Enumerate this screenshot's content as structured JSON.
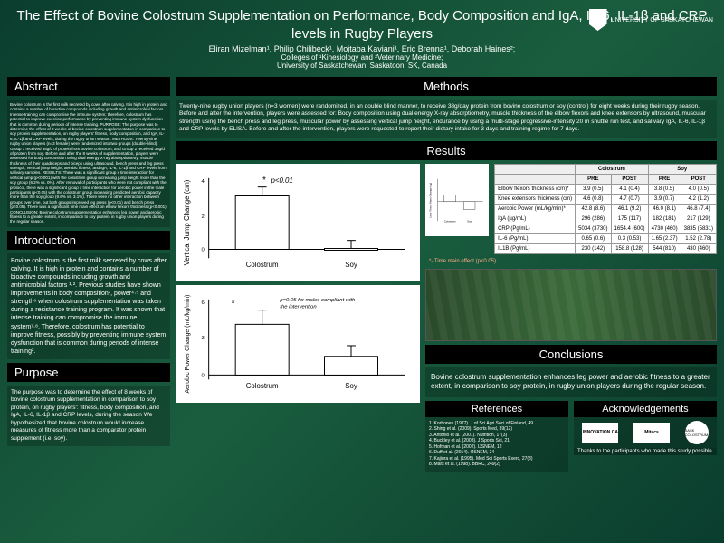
{
  "header": {
    "title": "The Effect of Bovine Colostrum Supplementation on Performance, Body Composition and IgA, IL-6, IL-1β and CRP levels in Rugby Players",
    "authors": "Eliran Mizelman¹, Philip Chilibeck¹, Mojtaba Kaviani¹, Eric Brenna¹, Deborah Haines²;",
    "affiliation": "Colleges of ¹Kinesiology and ²Veterinary Medicine;",
    "university": "University of Saskatchewan, Saskatoon, SK, Canada",
    "logo_text": "UNIVERSITY OF SASKATCHEWAN"
  },
  "sections": {
    "abstract": "Abstract",
    "introduction": "Introduction",
    "purpose": "Purpose",
    "methods": "Methods",
    "results": "Results",
    "conclusions": "Conclusions",
    "references": "References",
    "acknowledgements": "Acknowledgements"
  },
  "abstract_text": "Bovine colostrum is the first milk secreted by cows after calving. It is high in protein and contains a number of bioactive compounds including growth and antimicrobial factors. Intense training can compromise the immune system; therefore, colostrum has potential to improve exercise performance by preventing immune system dysfunction that is common during periods of intense training. PURPOSE: The purpose was to determine the effect of 8 weeks of bovine colostrum supplementation in comparison to soy protein supplementation, on rugby players' fitness, body composition, and IgA, IL-6, IL-1β and CRP levels, during the rugby union season. METHODS: Twenty-nine rugby union players (n=3 female) were randomized into two groups (double-blind). Group 1 received 38g/d of protein from bovine colostrum, and Group 2 received 38g/d of protein from soy. Before and after the 8 weeks of supplementation, players were assessed for body composition using dual energy X-ray absorptiometry, muscle thickness of their quadriceps and biceps using ultrasound, bench press and leg press strength, vertical jump height, aerobic fitness, and IgA, IL-6, IL-1β and CRP levels from salivary samples. RESULTS: There was a significant group x time interaction for vertical jump (p<0.001) with the colostrum group increasing jump height more than the soy group (6.2% vs. 0%). After removal of participants who were not compliant with the protocol, there was a significant group x time interaction for aerobic power in the male participants (p<0.05) with the colostrum group increasing predicted aerobic capacity more than the soy group (9.6% vs. 3.1%). There were no other interaction between groups over time, but both groups improved leg press (p<0.01) and bench press (p<0.05). There was a significant time main effect on elbow flexors thickness (p<0.001). CONCLUSION: Bovine colostrum supplementation enhances leg power and aerobic fitness to a greater extent, in comparison to soy protein, in rugby union players during the regular season.",
  "intro_text": "Bovine colostrum is the first milk secreted by cows after calving. It is high in protein and contains a number of bioactive compounds including growth and antimicrobial factors ¹·². Previous studies have shown improvements in body composition³, power⁴·⁵ and strength⁶ when colostrum supplementation was taken during a resistance training program. It was shown that intense training can compromise the immune system⁷·⁸. Therefore, colostrum has potential to improve fitness, possibly by preventing immune system dysfunction that is common during periods of intense training².",
  "purpose_text": "The purpose was to determine the effect of 8 weeks of bovine colostrum supplementation in comparison to soy protein, on rugby players': fitness, body composition, and IgA, IL-6, IL-1β and CRP levels, during the season We hypothesized that bovine colostrum would increase measures of fitness more than a comparator protein supplement (i.e. soy).",
  "methods_text": "Twenty-nine rugby union players (n=3 women) were randomized, in an double blind manner, to receive 38g/day protein from bovine colostrum or soy (control) for eight weeks during their rugby season. Before and after the intervention, players were assessed for: Body composition using dual energy X-ray absorptiometry, muscle thickness of the elbow flexors and knee extensors by ultrasound, muscular strength using the bench press and leg press, muscular power by assessing vertical jump height, endurance by using a multi-stage progressive-intensity 20 m shuttle run test, and salivary IgA, IL-6, IL-1β and CRP levels by ELISA. Before and after the intervention, players were requested to report their dietary intake for 3 days and training regime for 7 days.",
  "chart1": {
    "type": "bar",
    "ylabel": "Vertical Jump Change (cm)",
    "categories": [
      "Colostrum",
      "Soy"
    ],
    "values": [
      3.0,
      0.0
    ],
    "errors": [
      0.5,
      0.5
    ],
    "ylim": [
      -1,
      4
    ],
    "annotation": "p<0.01",
    "star": "*",
    "bar_color": "#ffffff",
    "stroke": "#000000"
  },
  "chart2": {
    "type": "bar",
    "ylabel": "Aerobic Power Change (mL/kg/min)",
    "categories": [
      "Colostrum",
      "Soy"
    ],
    "values": [
      4.0,
      1.5
    ],
    "errors": [
      1.2,
      0.8
    ],
    "ylim": [
      -1,
      6
    ],
    "annotation": "p=0.05 for males compliant with the intervention",
    "star": "*",
    "bar_color": "#ffffff",
    "stroke": "#000000"
  },
  "small_chart": {
    "ylabel": "Lean Tissue Mass Change (kg)",
    "categories": [
      "Colostrum",
      "Soy"
    ],
    "yticks": [
      "0.6",
      "0.4",
      "0.2",
      "0",
      "-0.2",
      "-0.4",
      "-0.6",
      "-0.8"
    ]
  },
  "table": {
    "headers": [
      "",
      "Colostrum",
      "",
      "Soy",
      ""
    ],
    "subheaders": [
      "",
      "PRE",
      "POST",
      "PRE",
      "POST"
    ],
    "rows": [
      [
        "Elbow flexors thickness (cm)*",
        "3.9 (0.5)",
        "4.1 (0.4)",
        "3.8 (0.5)",
        "4.0 (0.5)"
      ],
      [
        "Knee extensors thickness (cm)",
        "4.6 (0.8)",
        "4.7 (0.7)",
        "3.9 (0.7)",
        "4.2 (1.2)"
      ],
      [
        "Aerobic Power (mL/kg/min)*",
        "42.8 (8.6)",
        "46.1 (9.2)",
        "46.0 (8.1)",
        "46.8 (7.4)"
      ],
      [
        "IgA (µg/mL)",
        "296 (286)",
        "175 (117)",
        "182 (181)",
        "217 (129)"
      ],
      [
        "CRP (Pg/mL)",
        "5034 (3730)",
        "1654.4 (600)",
        "4730 (460)",
        "3835 (5831)"
      ],
      [
        "IL-6 (Pg/mL)",
        "0.65 (0.6)",
        "0.3 (0.53)",
        "1.65 (2.37)",
        "1.52 (2.78)"
      ],
      [
        "IL1B (Pg/mL)",
        "230 (142)",
        "158.8 (128)",
        "544 (810)",
        "430 (460)"
      ]
    ],
    "footnote": "*- Time main effect (p<0.05)"
  },
  "conclusions_text": "Bovine colostrum supplementation enhances leg power and aerobic fitness to a greater extent, in comparison to soy protein, in rugby union players during the regular season.",
  "references": [
    "1. Korhonen (1977). J of Sci Agri Soci of Finland, 49",
    "2. Shing et al. (2009). Sports Med, 39(12)",
    "3. Antonio et al. (2001). Nutrition, 17(3)",
    "4. Buckley et al. (2003). J Sports Sci, 21",
    "5. Hofman et al. (2002). IJSNEM, 12",
    "6. Duff et al. (2014). IJSNEM, 24",
    "7. Kajiura et al. (1995). Med Sci Sports Exerc, 27(8)",
    "8. Mars et al. (1998). BBRC, 249(2)"
  ],
  "ack_logos": [
    "INNOVATION.CA",
    "Mitacs",
    "SASK COLOSTRUM"
  ],
  "ack_footer": "Thanks to the participants who made this study possible"
}
